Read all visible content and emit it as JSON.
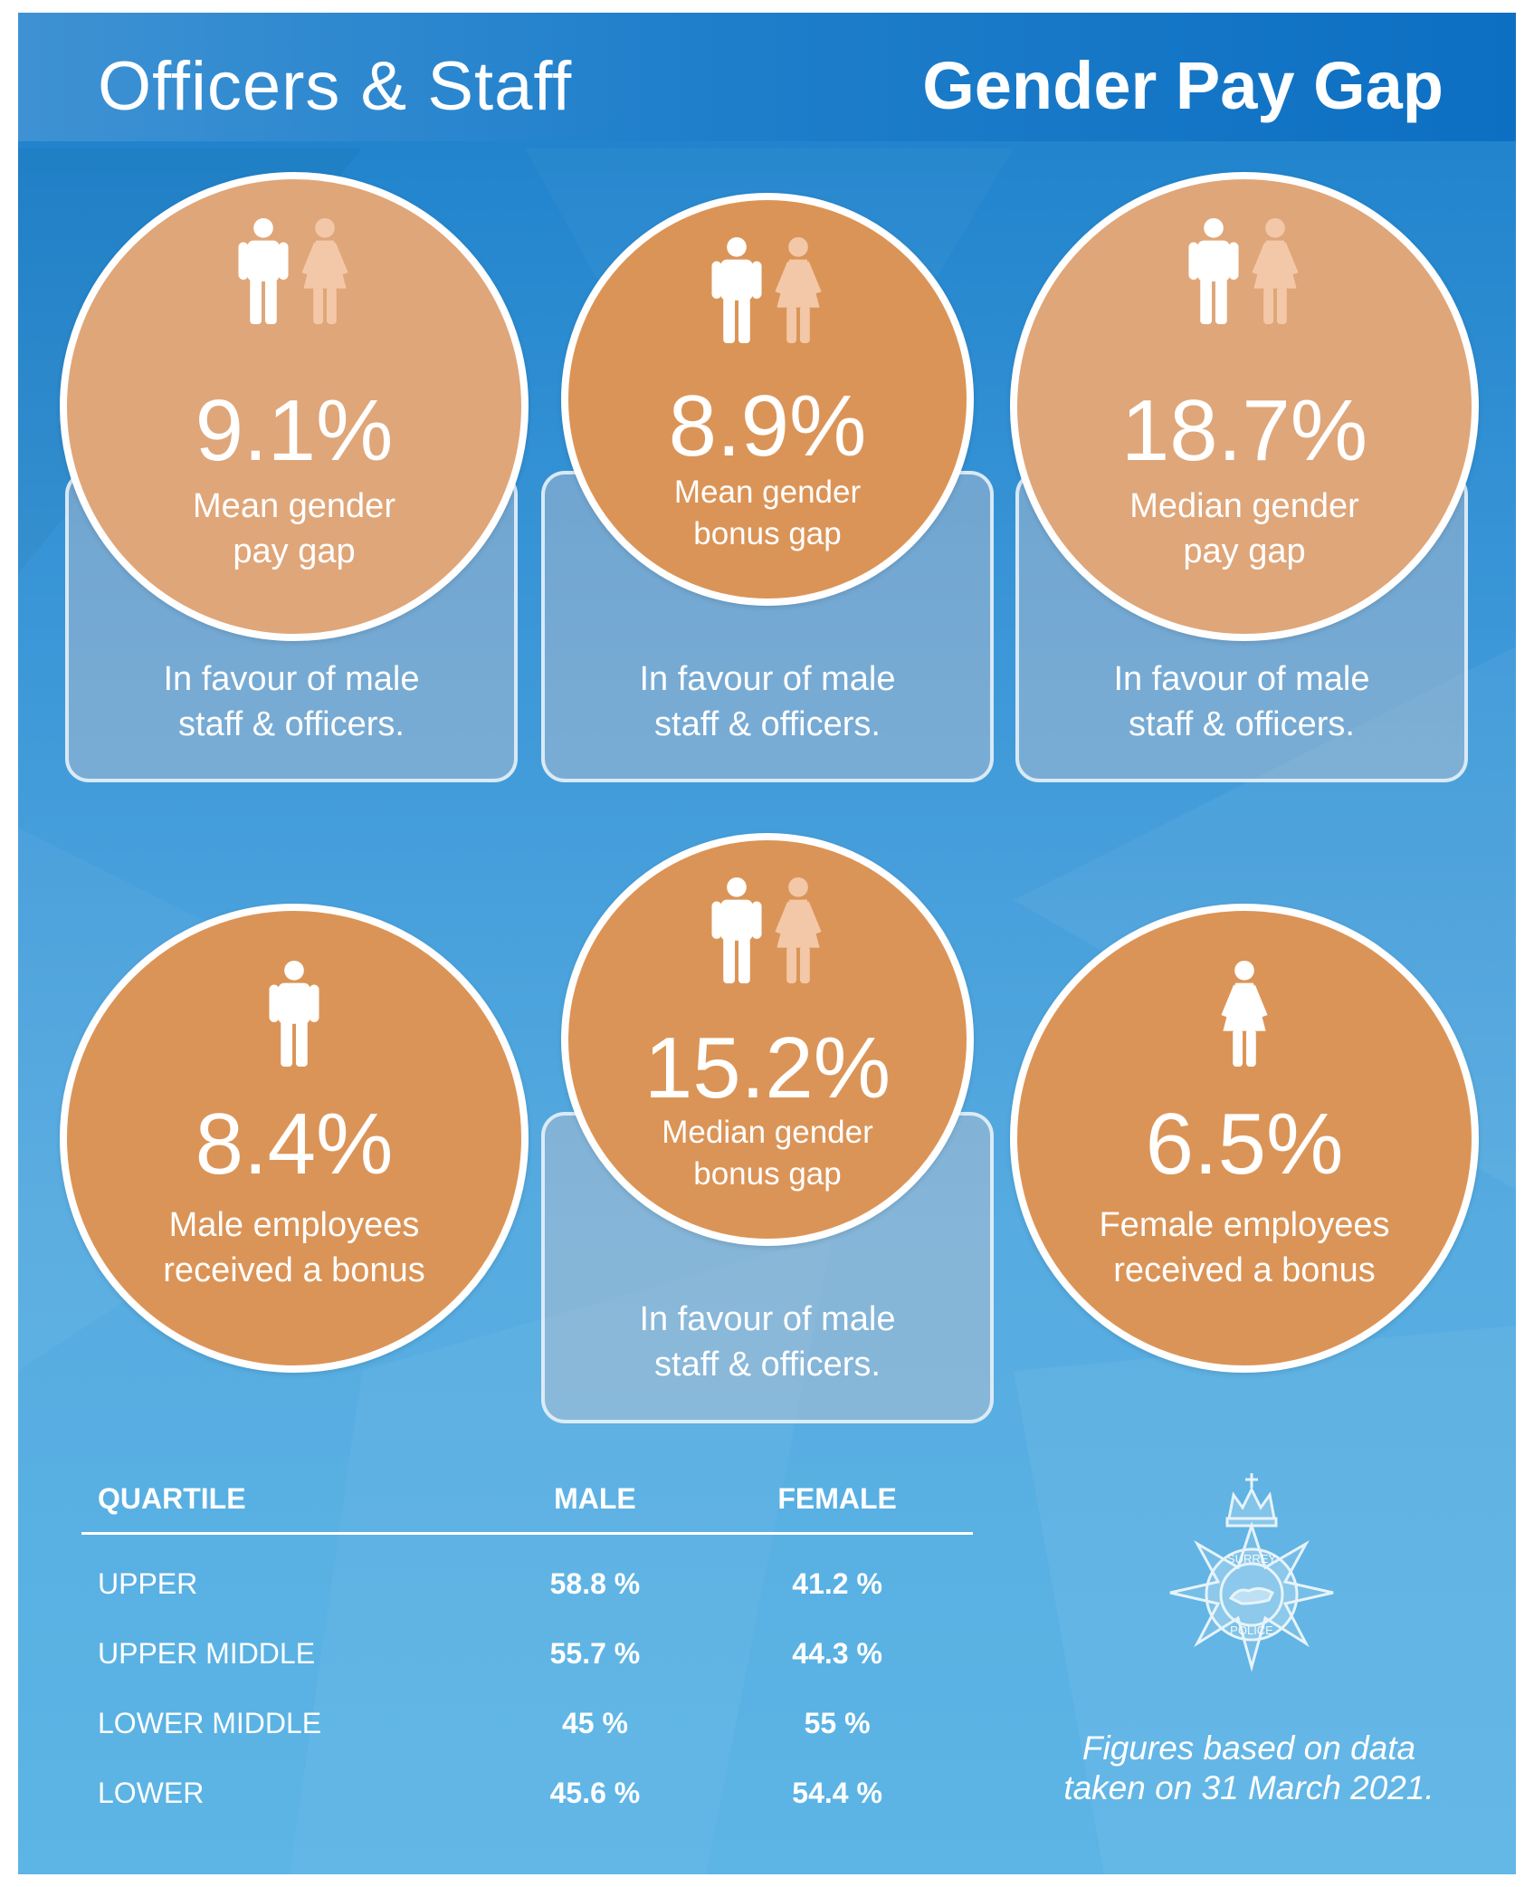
{
  "header": {
    "left_title": "Officers & Staff",
    "right_title": "Gender Pay Gap"
  },
  "stats": [
    {
      "value": "9.1%",
      "label_line1": "Mean gender",
      "label_line2": "pay gap",
      "note_line1": "In favour of male",
      "note_line2": "staff & officers.",
      "icons": "male-female"
    },
    {
      "value": "8.9%",
      "label_line1": "Mean gender",
      "label_line2": "bonus gap",
      "note_line1": "In favour of male",
      "note_line2": "staff & officers.",
      "icons": "male-female"
    },
    {
      "value": "18.7%",
      "label_line1": "Median gender",
      "label_line2": "pay gap",
      "note_line1": "In favour of male",
      "note_line2": "staff & officers.",
      "icons": "male-female"
    },
    {
      "value": "8.4%",
      "label_line1": "Male employees",
      "label_line2": "received a bonus",
      "icons": "male"
    },
    {
      "value": "15.2%",
      "label_line1": "Median gender",
      "label_line2": "bonus gap",
      "note_line1": "In favour of male",
      "note_line2": "staff & officers.",
      "icons": "male-female"
    },
    {
      "value": "6.5%",
      "label_line1": "Female employees",
      "label_line2": "received a bonus",
      "icons": "female"
    }
  ],
  "quartile_table": {
    "headers": [
      "QUARTILE",
      "MALE",
      "FEMALE"
    ],
    "rows": [
      {
        "quartile": "UPPER",
        "male": "58.8 %",
        "female": "41.2 %"
      },
      {
        "quartile": "UPPER MIDDLE",
        "male": "55.7 %",
        "female": "44.3 %"
      },
      {
        "quartile": "LOWER MIDDLE",
        "male": "45 %",
        "female": "55 %"
      },
      {
        "quartile": "LOWER",
        "male": "45.6 %",
        "female": "54.4 %"
      }
    ]
  },
  "footnote": {
    "line1": "Figures based on data",
    "line2": "taken on 31 March 2021."
  },
  "logo": {
    "ring_top_text": "SURREY",
    "ring_bottom_text": "POLICE"
  },
  "colors": {
    "circle_light": "#dfa679",
    "circle_dark": "#db9457",
    "background_blue": "#2a8bd2",
    "icon_female": "#f3c8a8"
  }
}
